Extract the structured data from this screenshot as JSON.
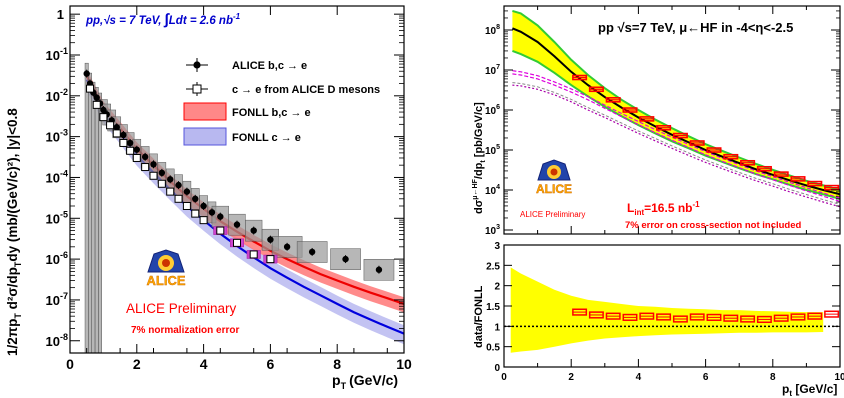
{
  "colors": {
    "alice_red": "#ff0000",
    "fonll_red": "#ff5050",
    "fonll_blue_band": "#9999ee",
    "fonll_blue_line": "#0000dd",
    "title_blue": "#0000cc",
    "yellow_band": "#ffff00",
    "green": "#33cc33",
    "magenta": "#dd00dd",
    "gray_band": "#888888"
  },
  "chart_data": [
    {
      "type": "scatter",
      "title": "pp,√s = 7 TeV, ∫Ldt = 2.6 nb⁻¹",
      "title_parts": {
        "prefix": "pp,√s = 7 TeV, ",
        "integral": "∫",
        "lumi": "Ldt = 2.6 nb",
        "lumi_exp": "-1"
      },
      "xlabel": "p",
      "xlabel_sub": "T",
      "xlabel_unit": "(GeV/c)",
      "ylabel": "1/2πp",
      "ylabel_sub": "T",
      "ylabel_rest": " d²σ/dp",
      "ylabel_sub2": "T",
      "ylabel_tail": "dy (mb/(GeV/c)²), |y|<0.8",
      "xlim": [
        0,
        10
      ],
      "ylim_log": [
        -8.3,
        0.2
      ],
      "yscale": "log",
      "x_ticks": [
        "0",
        "2",
        "4",
        "6",
        "8",
        "10"
      ],
      "y_ticks": [
        {
          "exp": 0,
          "label": "1"
        },
        {
          "exp": -1,
          "label": "10",
          "sup": "-1"
        },
        {
          "exp": -2,
          "label": "10",
          "sup": "-2"
        },
        {
          "exp": -3,
          "label": "10",
          "sup": "-3"
        },
        {
          "exp": -4,
          "label": "10",
          "sup": "-4"
        },
        {
          "exp": -5,
          "label": "10",
          "sup": "-5"
        },
        {
          "exp": -6,
          "label": "10",
          "sup": "-6"
        },
        {
          "exp": -7,
          "label": "10",
          "sup": "-7"
        },
        {
          "exp": -8,
          "label": "10",
          "sup": "-8"
        }
      ],
      "legend_placement": "top-right",
      "legend": [
        {
          "label": "ALICE b,c → e",
          "kind": "point"
        },
        {
          "label": "c → e from ALICE D mesons",
          "kind": "open-square"
        },
        {
          "label": "FONLL b,c → e",
          "kind": "red-band"
        },
        {
          "label": "FONLL c → e",
          "kind": "blue-band"
        }
      ],
      "series": [
        {
          "name": "ALICE b,c → e",
          "x": [
            0.5,
            0.6,
            0.7,
            0.8,
            0.9,
            1.0,
            1.1,
            1.25,
            1.4,
            1.6,
            1.8,
            2.0,
            2.25,
            2.5,
            2.75,
            3.0,
            3.25,
            3.5,
            3.75,
            4.0,
            4.25,
            4.5,
            5.0,
            5.5,
            6.0,
            6.5,
            7.25,
            8.25,
            9.25
          ],
          "y": [
            0.035,
            0.02,
            0.012,
            0.009,
            0.0065,
            0.0045,
            0.0035,
            0.0025,
            0.0017,
            0.0011,
            0.0007,
            0.00048,
            0.00032,
            0.00021,
            0.00013,
            9e-05,
            6.5e-05,
            4.5e-05,
            3e-05,
            2e-05,
            1.4e-05,
            1.1e-05,
            7e-06,
            5e-06,
            3e-06,
            2e-06,
            1.5e-06,
            1e-06,
            5.5e-07
          ]
        },
        {
          "name": "c → e from ALICE D mesons",
          "x": [
            0.6,
            0.8,
            1.0,
            1.2,
            1.4,
            1.6,
            1.8,
            2.0,
            2.25,
            2.5,
            2.75,
            3.0,
            3.25,
            3.5,
            3.75,
            4.0,
            4.5,
            5.0,
            5.5,
            6.0
          ],
          "y": [
            0.015,
            0.006,
            0.003,
            0.0019,
            0.0012,
            0.0007,
            0.00045,
            0.0003,
            0.00018,
            0.00011,
            7e-05,
            4.5e-05,
            3e-05,
            2e-05,
            1.3e-05,
            9e-06,
            5e-06,
            2.5e-06,
            1.3e-06,
            1e-06
          ]
        },
        {
          "name": "FONLL b,c → e",
          "x": [
            0.5,
            1,
            1.5,
            2,
            2.5,
            3,
            3.5,
            4,
            4.5,
            5,
            5.5,
            6,
            6.5,
            7,
            7.5,
            8,
            8.5,
            9,
            9.5,
            10
          ],
          "y": [
            0.03,
            0.005,
            0.0016,
            0.0005,
            0.0002,
            8e-05,
            3.5e-05,
            1.7e-05,
            8.5e-06,
            4.7e-06,
            2.7e-06,
            1.6e-06,
            1e-06,
            6.5e-07,
            4.3e-07,
            3e-07,
            2.1e-07,
            1.5e-07,
            1.1e-07,
            8e-08
          ]
        },
        {
          "name": "FONLL c → e",
          "x": [
            0.5,
            1,
            1.5,
            2,
            2.5,
            3,
            3.5,
            4,
            4.5,
            5,
            5.5,
            6,
            6.5,
            7,
            7.5,
            8,
            8.5,
            9,
            9.5,
            10
          ],
          "y": [
            0.025,
            0.004,
            0.0012,
            0.00035,
            0.00013,
            5e-05,
            2e-05,
            9e-06,
            4.2e-06,
            2.1e-06,
            1.1e-06,
            6e-07,
            3.5e-07,
            2.1e-07,
            1.3e-07,
            8e-08,
            5e-08,
            3.3e-08,
            2.2e-08,
            1.5e-08
          ]
        }
      ],
      "logo_text": "ALICE",
      "preliminary_text": "ALICE Preliminary",
      "note": "7% normalization error"
    },
    {
      "type": "line",
      "title": "pp √s=7 TeV, μ←HF in -4<η<-2.5",
      "title_parts": {
        "prefix": "pp √s=7 TeV, μ←HF in -4<η<-2.5"
      },
      "ylabel": "dσ",
      "ylabel_sup": "μ←HF",
      "ylabel_rest": "/dp",
      "ylabel_sub": "t",
      "ylabel_tail": " [pb/GeV/c]",
      "yscale": "log",
      "xlim": [
        0,
        10
      ],
      "ylim_log": [
        2.9,
        8.6
      ],
      "y_ticks": [
        {
          "exp": 3,
          "label": "10",
          "sup": "3"
        },
        {
          "exp": 4,
          "label": "10",
          "sup": "4"
        },
        {
          "exp": 5,
          "label": "10",
          "sup": "5"
        },
        {
          "exp": 6,
          "label": "10",
          "sup": "6"
        },
        {
          "exp": 7,
          "label": "10",
          "sup": "7"
        },
        {
          "exp": 8,
          "label": "10",
          "sup": "8"
        }
      ],
      "series": [
        {
          "name": "data",
          "x": [
            2.25,
            2.75,
            3.25,
            3.75,
            4.25,
            4.75,
            5.25,
            5.75,
            6.25,
            6.75,
            7.25,
            7.75,
            8.25,
            8.75,
            9.25,
            9.75
          ],
          "y": [
            6500000.0,
            3300000.0,
            1800000.0,
            1000000.0,
            600000.0,
            360000.0,
            230000.0,
            150000.0,
            100000.0,
            68000.0,
            48000.0,
            34000.0,
            25000.0,
            19000.0,
            14500.0,
            11500.0
          ]
        },
        {
          "name": "FONLL",
          "x": [
            0.25,
            0.5,
            1,
            1.5,
            2,
            2.5,
            3,
            3.5,
            4,
            4.5,
            5,
            5.5,
            6,
            6.5,
            7,
            7.5,
            8,
            8.5,
            9,
            9.5,
            10
          ],
          "y": [
            110000000.0,
            90000000.0,
            50000000.0,
            22000000.0,
            9000000.0,
            4200000.0,
            2100000.0,
            1150000.0,
            650000.0,
            390000.0,
            240000.0,
            155000.0,
            100000.0,
            68000.0,
            47000.0,
            33000.0,
            24000.0,
            17500.0,
            13000.0,
            10000.0,
            7800.0
          ]
        },
        {
          "name": "FONLL-upper",
          "x": [
            0.25,
            0.5,
            1,
            1.5,
            2,
            2.5,
            3,
            3.5,
            4,
            4.5,
            5,
            5.5,
            6,
            6.5,
            7,
            7.5,
            8,
            8.5,
            9,
            9.5,
            10
          ],
          "y": [
            300000000.0,
            260000000.0,
            130000000.0,
            50000000.0,
            18000000.0,
            7500000.0,
            3500000.0,
            1800000.0,
            1000000.0,
            580000.0,
            350000.0,
            220000.0,
            140000.0,
            95000.0,
            65000.0,
            45000.0,
            32000.0,
            23000.0,
            17000.0,
            13000.0,
            10000.0
          ]
        },
        {
          "name": "FONLL-lower",
          "x": [
            0.25,
            0.5,
            1,
            1.5,
            2,
            2.5,
            3,
            3.5,
            4,
            4.5,
            5,
            5.5,
            6,
            6.5,
            7,
            7.5,
            8,
            8.5,
            9,
            9.5,
            10
          ],
          "y": [
            30000000.0,
            25000000.0,
            16000000.0,
            8500000.0,
            4200000.0,
            2200000.0,
            1200000.0,
            700000.0,
            420000.0,
            260000.0,
            165000.0,
            110000.0,
            72000.0,
            50000.0,
            35000.0,
            25000.0,
            18500.0,
            13500.0,
            10000.0,
            7800.0,
            6000.0
          ]
        },
        {
          "name": "charm",
          "x": [
            0.25,
            0.5,
            1,
            1.5,
            2,
            2.5,
            3,
            3.5,
            4,
            4.5,
            5,
            5.5,
            6,
            6.5,
            7,
            7.5,
            8,
            8.5,
            9,
            9.5,
            10
          ],
          "y": [
            8000000.0,
            7500000.0,
            6000000.0,
            4200000.0,
            2800000.0,
            1800000.0,
            1100000.0,
            680000.0,
            430000.0,
            270000.0,
            175000.0,
            115000.0,
            76000.0,
            52000.0,
            36000.0,
            25000.0,
            18000.0,
            13000.0,
            9500.0,
            7000.0,
            5200.0
          ]
        },
        {
          "name": "beauty",
          "x": [
            0.25,
            0.5,
            1,
            1.5,
            2,
            2.5,
            3,
            3.5,
            4,
            4.5,
            5,
            5.5,
            6,
            6.5,
            7,
            7.5,
            8,
            8.5,
            9,
            9.5,
            10
          ],
          "y": [
            4200000.0,
            4000000.0,
            3300000.0,
            2400000.0,
            1600000.0,
            1000000.0,
            650000.0,
            410000.0,
            260000.0,
            170000.0,
            110000.0,
            73000.0,
            49000.0,
            34000.0,
            24000.0,
            17000.0,
            12500.0,
            9000.0,
            6700.0,
            5000.0,
            3800.0
          ]
        }
      ],
      "lumi": "L",
      "lumi_sub": "int",
      "lumi_value": "=16.5 nb",
      "lumi_exp": "-1",
      "note": "7% error on cross-section not included",
      "logo_text": "ALICE",
      "preliminary_text": "ALICE Preliminary"
    },
    {
      "type": "line",
      "ylabel": "data/FONLL",
      "xlabel": "p",
      "xlabel_sub": "t",
      "xlabel_unit": " [GeV/c]",
      "xlim": [
        0,
        10
      ],
      "ylim": [
        0,
        3
      ],
      "x_ticks": [
        "0",
        "2",
        "4",
        "6",
        "8",
        "10"
      ],
      "y_ticks": [
        "0",
        "0.5",
        "1",
        "1.5",
        "2",
        "2.5",
        "3"
      ],
      "reference_line": 1,
      "band_x": [
        0.2,
        0.5,
        1,
        1.5,
        2,
        2.5,
        3,
        3.5,
        4,
        4.5,
        5,
        5.5,
        6,
        6.5,
        7,
        7.5,
        8,
        8.5,
        9,
        9.5
      ],
      "band_upper": [
        2.45,
        2.3,
        2.1,
        1.9,
        1.75,
        1.65,
        1.6,
        1.55,
        1.5,
        1.48,
        1.45,
        1.43,
        1.42,
        1.4,
        1.4,
        1.38,
        1.37,
        1.36,
        1.35,
        1.35
      ],
      "band_lower": [
        0.35,
        0.38,
        0.42,
        0.5,
        0.58,
        0.65,
        0.7,
        0.73,
        0.76,
        0.78,
        0.8,
        0.81,
        0.82,
        0.83,
        0.84,
        0.84,
        0.85,
        0.85,
        0.85,
        0.86
      ],
      "ratio_x": [
        2.25,
        2.75,
        3.25,
        3.75,
        4.25,
        4.75,
        5.25,
        5.75,
        6.25,
        6.75,
        7.25,
        7.75,
        8.25,
        8.75,
        9.25,
        9.75
      ],
      "ratio_y": [
        1.35,
        1.28,
        1.25,
        1.22,
        1.25,
        1.23,
        1.18,
        1.23,
        1.22,
        1.2,
        1.18,
        1.17,
        1.2,
        1.23,
        1.25,
        1.3
      ]
    }
  ]
}
